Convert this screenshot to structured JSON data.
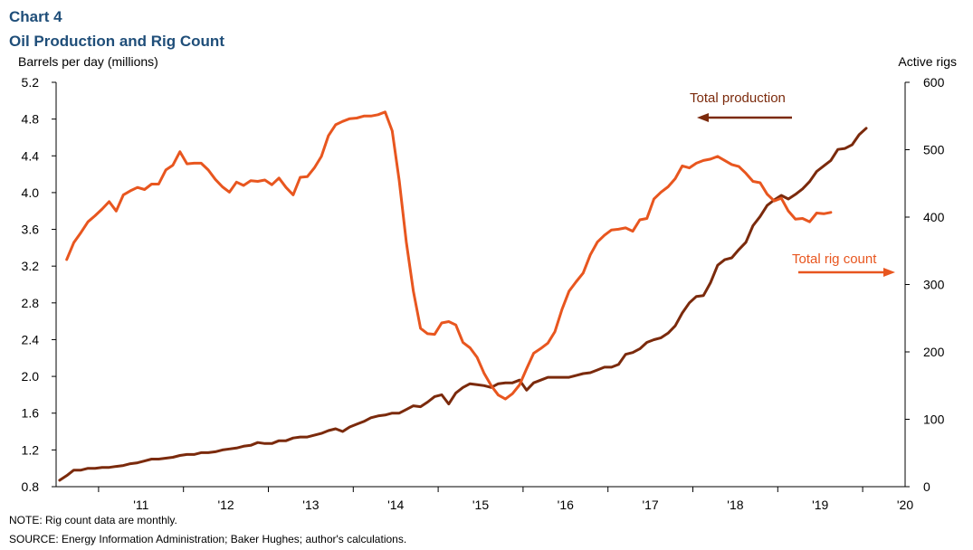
{
  "header": {
    "chart_number": "Chart 4",
    "title": "Oil Production and Rig Count",
    "left_axis_label": "Barrels per day (millions)",
    "right_axis_label": "Active rigs"
  },
  "notes": {
    "note": "NOTE:  Rig count data are monthly.",
    "source": "SOURCE:  Energy Information Administration; Baker Hughes; author's calculations."
  },
  "chart_data": {
    "type": "line",
    "title": "Oil Production and Rig Count",
    "x_tick_labels": [
      "'11",
      "'12",
      "'13",
      "'14",
      "'15",
      "'16",
      "'17",
      "'18",
      "'19",
      "'20"
    ],
    "x_range": [
      "2010-07",
      "2020-06"
    ],
    "y_left": {
      "label": "Barrels per day (millions)",
      "range": [
        0.8,
        5.2
      ],
      "ticks": [
        "0.8",
        "1.2",
        "1.6",
        "2.0",
        "2.4",
        "2.8",
        "3.2",
        "3.6",
        "4.0",
        "4.4",
        "4.8",
        "5.2"
      ]
    },
    "y_right": {
      "label": "Active rigs",
      "range": [
        0,
        600
      ],
      "ticks": [
        "0",
        "100",
        "200",
        "300",
        "400",
        "500",
        "600"
      ]
    },
    "grid": false,
    "colors": {
      "production": "#7b2a0c",
      "rigs": "#e8561f",
      "title": "#1f4e79"
    },
    "annotations": {
      "production_label": "Total production",
      "production_arrow": "left",
      "rigs_label": "Total rig count",
      "rigs_arrow": "right"
    },
    "series": [
      {
        "name": "Total production",
        "axis": "left",
        "start": "2010-07",
        "values": [
          0.87,
          0.92,
          0.98,
          0.98,
          1.0,
          1.0,
          1.01,
          1.01,
          1.02,
          1.03,
          1.05,
          1.06,
          1.08,
          1.1,
          1.1,
          1.11,
          1.12,
          1.14,
          1.15,
          1.15,
          1.17,
          1.17,
          1.18,
          1.2,
          1.21,
          1.22,
          1.24,
          1.25,
          1.28,
          1.27,
          1.27,
          1.3,
          1.3,
          1.33,
          1.34,
          1.34,
          1.36,
          1.38,
          1.41,
          1.43,
          1.4,
          1.45,
          1.48,
          1.51,
          1.55,
          1.57,
          1.58,
          1.6,
          1.6,
          1.64,
          1.68,
          1.67,
          1.72,
          1.78,
          1.8,
          1.7,
          1.82,
          1.88,
          1.92,
          1.91,
          1.9,
          1.88,
          1.92,
          1.93,
          1.93,
          1.96,
          1.85,
          1.93,
          1.96,
          1.99,
          1.99,
          1.99,
          1.99,
          2.01,
          2.03,
          2.04,
          2.07,
          2.1,
          2.1,
          2.13,
          2.24,
          2.26,
          2.3,
          2.37,
          2.4,
          2.42,
          2.47,
          2.55,
          2.69,
          2.8,
          2.87,
          2.88,
          3.02,
          3.21,
          3.27,
          3.29,
          3.38,
          3.46,
          3.64,
          3.74,
          3.86,
          3.92,
          3.97,
          3.93,
          3.98,
          4.04,
          4.12,
          4.23,
          4.29,
          4.35,
          4.47,
          4.48,
          4.52,
          4.63,
          4.7
        ]
      },
      {
        "name": "Total rig count",
        "axis": "right",
        "start": "2010-08",
        "values": [
          337,
          362,
          377,
          393,
          402,
          412,
          423,
          409,
          433,
          439,
          444,
          441,
          449,
          449,
          470,
          477,
          497,
          479,
          480,
          480,
          470,
          456,
          445,
          437,
          452,
          447,
          454,
          453,
          455,
          448,
          458,
          444,
          433,
          459,
          460,
          473,
          490,
          521,
          537,
          542,
          546,
          547,
          550,
          550,
          552,
          556,
          528,
          454,
          363,
          290,
          235,
          227,
          226,
          243,
          245,
          240,
          214,
          206,
          192,
          168,
          150,
          136,
          130,
          138,
          151,
          175,
          198,
          205,
          213,
          230,
          263,
          290,
          304,
          317,
          344,
          363,
          373,
          381,
          382,
          384,
          379,
          396,
          398,
          427,
          437,
          445,
          457,
          476,
          473,
          480,
          484,
          486,
          490,
          484,
          478,
          475,
          465,
          453,
          451,
          434,
          424,
          428,
          409,
          397,
          398,
          393,
          406,
          405,
          407
        ]
      }
    ]
  }
}
